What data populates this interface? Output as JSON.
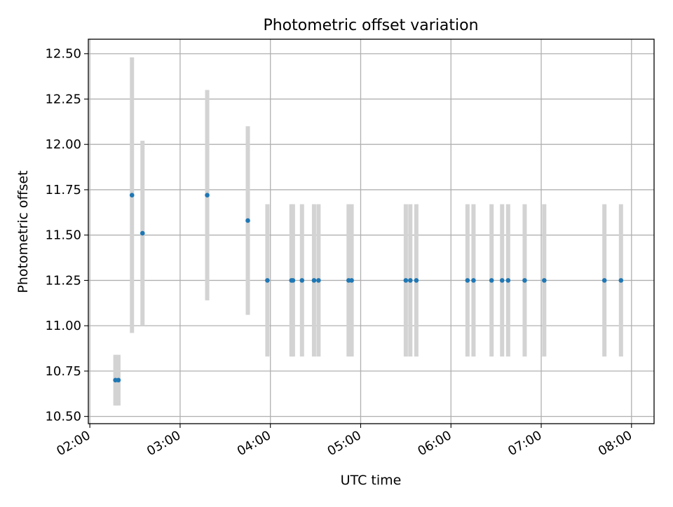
{
  "chart_data": {
    "type": "scatter",
    "title": "Photometric offset variation",
    "xlabel": "UTC time",
    "ylabel": "Photometric offset",
    "x_axis_type": "time",
    "x_tick_labels": [
      "02:00",
      "03:00",
      "04:00",
      "05:00",
      "06:00",
      "07:00",
      "08:00"
    ],
    "y_tick_labels": [
      "10.50",
      "10.75",
      "11.00",
      "11.25",
      "11.50",
      "11.75",
      "12.00",
      "12.25",
      "12.50"
    ],
    "xlim": [
      "01:59",
      "08:15"
    ],
    "ylim": [
      10.46,
      12.58
    ],
    "grid": true,
    "legend": "none",
    "marker_color": "#1f77b4",
    "errorbar_color": "#d3d3d3",
    "points": [
      {
        "x": "02:17",
        "y": 10.7,
        "err": 0.14
      },
      {
        "x": "02:19",
        "y": 10.7,
        "err": 0.14
      },
      {
        "x": "02:28",
        "y": 11.72,
        "err": 0.76
      },
      {
        "x": "02:35",
        "y": 11.51,
        "err": 0.51
      },
      {
        "x": "03:18",
        "y": 11.72,
        "err": 0.58
      },
      {
        "x": "03:45",
        "y": 11.58,
        "err": 0.52
      },
      {
        "x": "03:58",
        "y": 11.25,
        "err": 0.42
      },
      {
        "x": "04:14",
        "y": 11.25,
        "err": 0.42
      },
      {
        "x": "04:15",
        "y": 11.25,
        "err": 0.42
      },
      {
        "x": "04:21",
        "y": 11.25,
        "err": 0.42
      },
      {
        "x": "04:29",
        "y": 11.25,
        "err": 0.42
      },
      {
        "x": "04:32",
        "y": 11.25,
        "err": 0.42
      },
      {
        "x": "04:52",
        "y": 11.25,
        "err": 0.42
      },
      {
        "x": "04:54",
        "y": 11.25,
        "err": 0.42
      },
      {
        "x": "05:30",
        "y": 11.25,
        "err": 0.42
      },
      {
        "x": "05:33",
        "y": 11.25,
        "err": 0.42
      },
      {
        "x": "05:37",
        "y": 11.25,
        "err": 0.42
      },
      {
        "x": "06:11",
        "y": 11.25,
        "err": 0.42
      },
      {
        "x": "06:15",
        "y": 11.25,
        "err": 0.42
      },
      {
        "x": "06:27",
        "y": 11.25,
        "err": 0.42
      },
      {
        "x": "06:34",
        "y": 11.25,
        "err": 0.42
      },
      {
        "x": "06:38",
        "y": 11.25,
        "err": 0.42
      },
      {
        "x": "06:49",
        "y": 11.25,
        "err": 0.42
      },
      {
        "x": "07:02",
        "y": 11.25,
        "err": 0.42
      },
      {
        "x": "07:42",
        "y": 11.25,
        "err": 0.42
      },
      {
        "x": "07:53",
        "y": 11.25,
        "err": 0.42
      }
    ]
  }
}
